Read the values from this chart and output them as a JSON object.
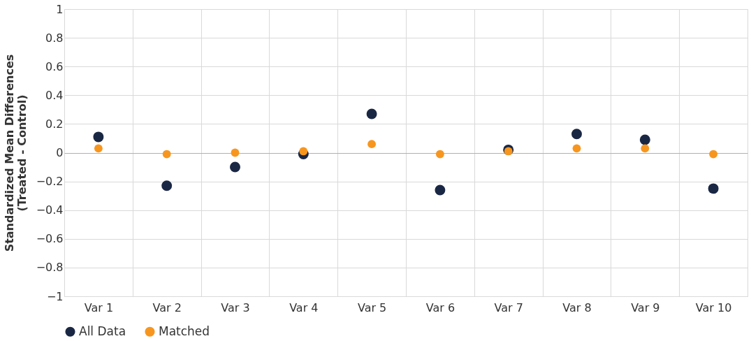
{
  "chart_data": {
    "type": "scatter",
    "ylabel": "Standardized Mean Differences\n(Treated - Control)",
    "categories": [
      "Var 1",
      "Var 2",
      "Var 3",
      "Var 4",
      "Var 5",
      "Var 6",
      "Var 7",
      "Var 8",
      "Var 9",
      "Var 10"
    ],
    "series": [
      {
        "name": "All Data",
        "color": "#1a2744",
        "values": [
          0.11,
          -0.23,
          -0.1,
          -0.01,
          0.27,
          -0.26,
          0.02,
          0.13,
          0.09,
          -0.25
        ]
      },
      {
        "name": "Matched",
        "color": "#f7961e",
        "values": [
          0.03,
          -0.01,
          0.0,
          0.01,
          0.06,
          -0.01,
          0.01,
          0.03,
          0.03,
          -0.01
        ]
      }
    ],
    "ylim": [
      -1,
      1
    ],
    "yticks": [
      {
        "value": -1,
        "label": "−1"
      },
      {
        "value": -0.8,
        "label": "−0.8"
      },
      {
        "value": -0.6,
        "label": "−0.6"
      },
      {
        "value": -0.4,
        "label": "−0.4"
      },
      {
        "value": -0.2,
        "label": "−0.2"
      },
      0,
      0.2,
      0.4,
      0.6,
      0.8,
      1
    ],
    "grid": true,
    "legend": "bottom",
    "marker": "circle"
  }
}
